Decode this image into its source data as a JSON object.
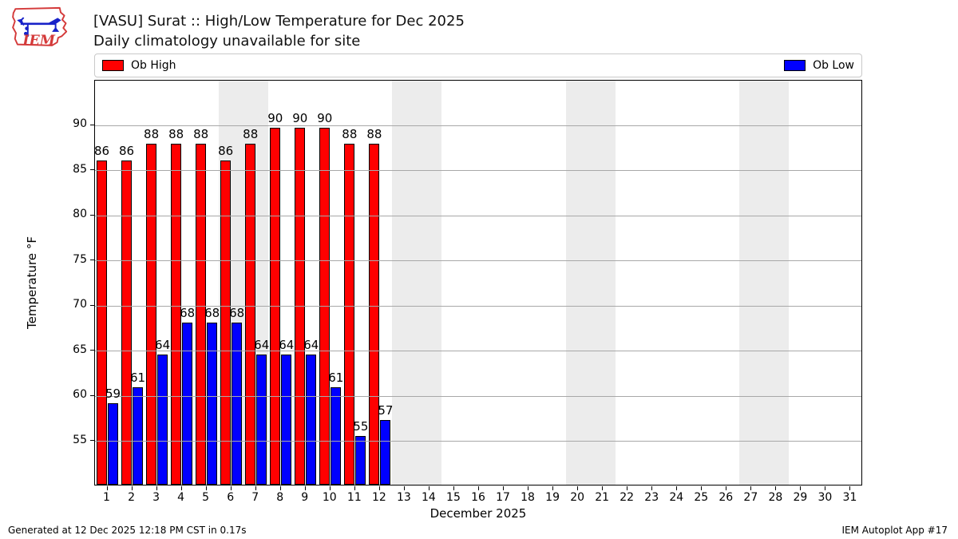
{
  "header": {
    "title": "[VASU] Surat :: High/Low Temperature for Dec 2025",
    "subtitle": "Daily climatology unavailable for site"
  },
  "legend": {
    "high_label": "Ob High",
    "low_label": "Ob Low",
    "high_color": "#ff0000",
    "low_color": "#0000ff"
  },
  "footer": {
    "generated": "Generated at 12 Dec 2025 12:18 PM CST in 0.17s",
    "app": "IEM Autoplot App #17"
  },
  "chart_data": {
    "type": "bar",
    "title": "[VASU] Surat :: High/Low Temperature for Dec 2025",
    "subtitle": "Daily climatology unavailable for site",
    "xlabel": "December 2025",
    "ylabel": "Temperature °F",
    "ylim": [
      50,
      95
    ],
    "yticks": [
      55,
      60,
      65,
      70,
      75,
      80,
      85,
      90
    ],
    "days": [
      1,
      2,
      3,
      4,
      5,
      6,
      7,
      8,
      9,
      10,
      11,
      12,
      13,
      14,
      15,
      16,
      17,
      18,
      19,
      20,
      21,
      22,
      23,
      24,
      25,
      26,
      27,
      28,
      29,
      30,
      31
    ],
    "days_with_data": [
      1,
      2,
      3,
      4,
      5,
      6,
      7,
      8,
      9,
      10,
      11,
      12
    ],
    "series": [
      {
        "name": "Ob High",
        "color": "#ff0000",
        "values": [
          86,
          86,
          87.8,
          87.8,
          87.8,
          86,
          87.8,
          89.6,
          89.6,
          89.6,
          87.8,
          87.8
        ],
        "labels": [
          "86",
          "86",
          "88",
          "88",
          "88",
          "86",
          "88",
          "90",
          "90",
          "90",
          "88",
          "88"
        ]
      },
      {
        "name": "Ob Low",
        "color": "#0000ff",
        "values": [
          59,
          60.8,
          64.4,
          68,
          68,
          68,
          64.4,
          64.4,
          64.4,
          60.8,
          55.4,
          57.2
        ],
        "labels": [
          "59",
          "61",
          "64",
          "68",
          "68",
          "68",
          "64",
          "64",
          "64",
          "61",
          "55",
          "57"
        ]
      }
    ],
    "weekend_band_days": [
      [
        6,
        7
      ],
      [
        13,
        14
      ],
      [
        20,
        21
      ],
      [
        27,
        28
      ]
    ],
    "band_color": "#ececec",
    "grid": "horizontal",
    "grid_color": "#a8a8a8",
    "legend_position": "top-row: Ob High left, Ob Low right"
  }
}
